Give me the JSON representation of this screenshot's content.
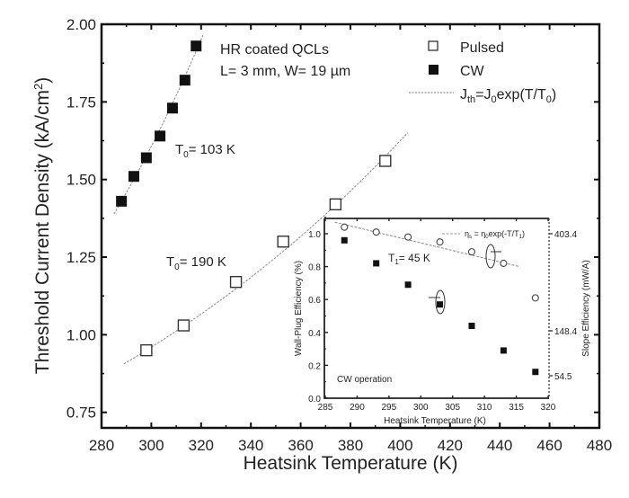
{
  "chart_data": [
    {
      "type": "scatter",
      "role": "main",
      "title": "",
      "xlabel": "Heatsink Temperature (K)",
      "ylabel": "Threshold Current Density (kA/cm²)",
      "xlim": [
        280,
        480
      ],
      "ylim": [
        0.7,
        2.0
      ],
      "xticks": [
        280,
        300,
        320,
        340,
        360,
        380,
        400,
        420,
        440,
        460,
        480
      ],
      "yticks": [
        0.75,
        1.0,
        1.25,
        1.5,
        1.75,
        2.0
      ],
      "ytick_labels": [
        "0.75",
        "1.00",
        "1.25",
        "1.50",
        "1.75",
        "2.00"
      ],
      "grid": false,
      "legend_position": "top-right",
      "annotation_header": [
        "HR coated QCLs",
        "L= 3 mm, W= 19 µm"
      ],
      "legend": [
        {
          "label": "Pulsed",
          "marker": "open-square"
        },
        {
          "label": "CW",
          "marker": "filled-square"
        },
        {
          "label": "Jth=J0exp(T/T0)",
          "marker": "dotted-line"
        }
      ],
      "series": [
        {
          "name": "CW",
          "marker": "filled-square",
          "x": [
            288,
            293,
            298,
            303.5,
            308.5,
            313.5,
            318
          ],
          "y": [
            1.43,
            1.51,
            1.57,
            1.64,
            1.73,
            1.82,
            1.93
          ]
        },
        {
          "name": "Pulsed",
          "marker": "open-square",
          "x": [
            298,
            313,
            334,
            353,
            374,
            394
          ],
          "y": [
            0.95,
            1.03,
            1.17,
            1.3,
            1.42,
            1.56
          ]
        }
      ],
      "fits": [
        {
          "name": "CW fit",
          "T0": 103,
          "x_range": [
            285,
            321
          ],
          "J0_at": [
            288,
            1.43
          ]
        },
        {
          "name": "Pulsed fit",
          "T0": 190,
          "x_range": [
            289,
            403
          ],
          "J0_at": [
            298,
            0.95
          ]
        }
      ],
      "annotations": [
        {
          "text": "T0= 103 K",
          "x": 306,
          "y": 1.68
        },
        {
          "text": "T0= 190 K",
          "x": 298,
          "y": 1.21
        }
      ]
    },
    {
      "type": "scatter",
      "role": "inset",
      "title": "",
      "xlabel": "Heatsink Temperature (K)",
      "ylabel": "Wall-Plug Efficiency (%)",
      "ylabel_right": "Slope Efficiency (mW/A)",
      "xlim": [
        285,
        320
      ],
      "ylim": [
        0.0,
        1.1
      ],
      "xticks": [
        285,
        290,
        295,
        300,
        305,
        310,
        315,
        320
      ],
      "yticks": [
        0.0,
        0.2,
        0.4,
        0.6,
        0.8,
        1.0
      ],
      "ytick_labels": [
        "0.0",
        "0.2",
        "0.4",
        "0.6",
        "0.8",
        "1.0"
      ],
      "right_ticks": [
        403.4,
        148.4,
        54.5
      ],
      "right_tick_labels": [
        "403.4",
        "148.4",
        "54.5"
      ],
      "grid": false,
      "legend": [
        {
          "label": "ηs = η0exp(-T/T1)",
          "marker": "dashed-line"
        }
      ],
      "series": [
        {
          "name": "Wall-Plug Efficiency",
          "marker": "filled-square",
          "axis": "left",
          "x": [
            288,
            293,
            298,
            303,
            308,
            313,
            318
          ],
          "y": [
            0.96,
            0.82,
            0.69,
            0.57,
            0.44,
            0.29,
            0.16
          ]
        },
        {
          "name": "Slope Efficiency",
          "marker": "open-circle",
          "axis": "right",
          "x": [
            288,
            293,
            298,
            303,
            308,
            313,
            318
          ],
          "y_plot": [
            1.04,
            1.01,
            0.98,
            0.95,
            0.89,
            0.82,
            0.61
          ]
        }
      ],
      "annotations": [
        {
          "text": "T1= 45 K",
          "x": 298,
          "y": 0.86
        },
        {
          "text": "CW operation",
          "x": 287,
          "y": 0.1
        }
      ]
    }
  ],
  "labels": {
    "main_xlabel": "Heatsink Temperature (K)",
    "main_ylabel": "Threshold Current Density (kA/cm",
    "main_ylabel_sup": "2",
    "main_ylabel_end": ")",
    "header_line1": "HR coated QCLs",
    "header_line2": "L= 3 mm, W= 19 µm",
    "legend_pulsed": "Pulsed",
    "legend_cw": "CW",
    "legend_fit_J": "J",
    "legend_fit_th": "th",
    "legend_fit_mid": "=J",
    "legend_fit_0": "0",
    "legend_fit_exp": "exp(T/T",
    "legend_fit_sub": "0",
    "legend_fit_close": ")",
    "t0_cw_T": "T",
    "t0_cw_sub": "0",
    "t0_cw_val": "= 103 K",
    "t0_pulsed_T": "T",
    "t0_pulsed_sub": "0",
    "t0_pulsed_val": "= 190 K",
    "inset_xlabel": "Heatsink Temperature (K)",
    "inset_ylabel": "Wall-Plug Efficiency (%)",
    "inset_ylabel_right": "Slope Efficiency (mW/A)",
    "inset_t1_T": "T",
    "inset_t1_sub": "1",
    "inset_t1_val": "= 45 K",
    "inset_cw_op": "CW operation",
    "inset_legend_eta": "η",
    "inset_legend_eta_sub": "s",
    "inset_legend_mid": " = η",
    "inset_legend_0": "0",
    "inset_legend_exp": "exp(-T/T",
    "inset_legend_1": "1",
    "inset_legend_close": ")"
  }
}
